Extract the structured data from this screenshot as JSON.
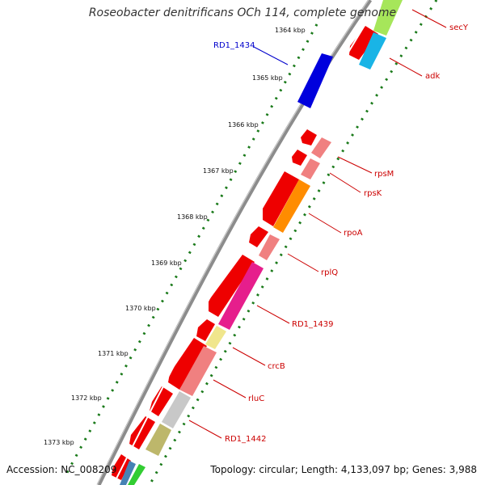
{
  "title": "Roseobacter denitrificans OCh 114, complete genome",
  "footer": {
    "accession": "Accession: NC_008209",
    "topology": "Topology: circular; Length: 4,133,097 bp; Genes: 3,988"
  },
  "ruler": {
    "unit": "kbp",
    "ticks": [
      1364,
      1365,
      1366,
      1367,
      1368,
      1369,
      1370,
      1371,
      1372,
      1373
    ]
  },
  "gene_labels": [
    {
      "name": "secY",
      "color": "#cc0000"
    },
    {
      "name": "adk",
      "color": "#cc0000"
    },
    {
      "name": "RD1_1434",
      "color": "#0000cc"
    },
    {
      "name": "rpsM",
      "color": "#cc0000"
    },
    {
      "name": "rpsK",
      "color": "#cc0000"
    },
    {
      "name": "rpoA",
      "color": "#cc0000"
    },
    {
      "name": "rplQ",
      "color": "#cc0000"
    },
    {
      "name": "RD1_1439",
      "color": "#cc0000"
    },
    {
      "name": "crcB",
      "color": "#cc0000"
    },
    {
      "name": "rluC",
      "color": "#cc0000"
    },
    {
      "name": "RD1_1442",
      "color": "#cc0000"
    }
  ],
  "colors": {
    "backbone": "#8c8c8c",
    "tick": "#1a7a1a",
    "cds_outer": "#ee0000",
    "blue_cds": "#0000dd",
    "ruler_text": "#111111"
  }
}
